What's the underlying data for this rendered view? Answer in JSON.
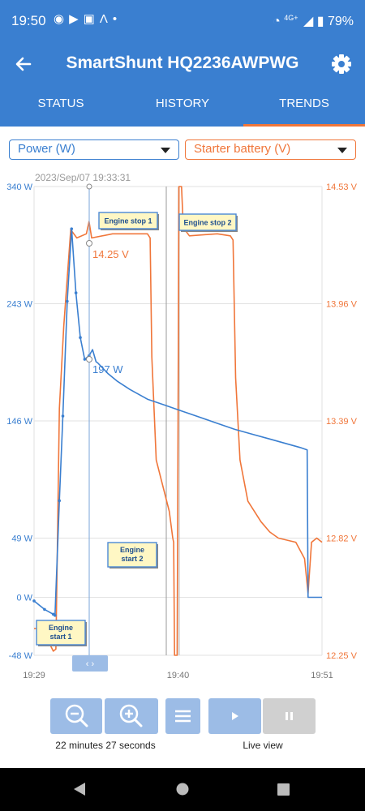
{
  "status_bar": {
    "time": "19:50",
    "network": "4G+",
    "battery": "79%",
    "icons": [
      "messenger-icon",
      "youtube-icon",
      "translate-icon",
      "lambda-icon",
      "dot-icon",
      "wifi-icon",
      "signal-icon",
      "battery-icon"
    ]
  },
  "app_bar": {
    "title": "SmartShunt HQ2236AWPWG"
  },
  "tabs": [
    {
      "label": "STATUS",
      "active": false
    },
    {
      "label": "HISTORY",
      "active": false
    },
    {
      "label": "TRENDS",
      "active": true
    }
  ],
  "selectors": {
    "left": "Power (W)",
    "right": "Starter battery (V)"
  },
  "colors": {
    "primary": "#3a7fd0",
    "accent": "#f0763a",
    "power_series": "#3a7fd0",
    "voltage_series": "#f0763a"
  },
  "chart_data": {
    "type": "line",
    "cursor_timestamp": "2023/Sep/07 19:33:31",
    "x_ticks": [
      "19:29",
      "19:40",
      "19:51"
    ],
    "y_left": {
      "ticks": [
        "340 W",
        "243 W",
        "146 W",
        "49 W",
        "0 W",
        "-48 W"
      ],
      "range": [
        -48,
        340
      ],
      "unit": "W"
    },
    "y_right": {
      "ticks": [
        "14.53 V",
        "13.96 V",
        "13.39 V",
        "12.82 V",
        "12.25 V"
      ],
      "range": [
        12.25,
        14.53
      ],
      "unit": "V"
    },
    "cursor_values": {
      "power": "197 W",
      "voltage": "14.25 V"
    },
    "annotations": [
      {
        "text": "Engine stop 1",
        "x": "19:33"
      },
      {
        "text": "Engine stop 2",
        "x": "19:40"
      },
      {
        "text": "Engine\nstart 2",
        "x": "19:39"
      },
      {
        "text": "Engine\nstart 1",
        "x": "19:31"
      }
    ],
    "series": [
      {
        "name": "Power (W)",
        "axis": "left",
        "color": "#3a7fd0",
        "points": [
          [
            0,
            -3
          ],
          [
            1.2,
            -10
          ],
          [
            2.2,
            -14
          ],
          [
            2.4,
            -15
          ],
          [
            2.9,
            80
          ],
          [
            3.3,
            150
          ],
          [
            3.8,
            245
          ],
          [
            4.3,
            305
          ],
          [
            4.8,
            252
          ],
          [
            5.3,
            215
          ],
          [
            5.8,
            197
          ],
          [
            6.3,
            200
          ],
          [
            6.7,
            205
          ],
          [
            7.1,
            195
          ],
          [
            7.3,
            194
          ],
          [
            8.5,
            185
          ],
          [
            9.5,
            179
          ],
          [
            11,
            172
          ],
          [
            13,
            164
          ],
          [
            15,
            159
          ],
          [
            17,
            154
          ],
          [
            19,
            149
          ],
          [
            21,
            144
          ],
          [
            23,
            139
          ],
          [
            25,
            135
          ],
          [
            27,
            131
          ],
          [
            29,
            127
          ],
          [
            30.5,
            124
          ],
          [
            31.3,
            122
          ],
          [
            31.4,
            0
          ],
          [
            33,
            0
          ]
        ]
      },
      {
        "name": "Starter battery (V)",
        "axis": "right",
        "color": "#f0763a",
        "points": [
          [
            0,
            12.38
          ],
          [
            1,
            12.38
          ],
          [
            1.5,
            12.33
          ],
          [
            2.2,
            12.27
          ],
          [
            2.5,
            12.28
          ],
          [
            2.9,
            13.45
          ],
          [
            3.4,
            13.85
          ],
          [
            4.2,
            14.32
          ],
          [
            4.9,
            14.28
          ],
          [
            6,
            14.3
          ],
          [
            6.3,
            14.36
          ],
          [
            6.6,
            14.28
          ],
          [
            9,
            14.3
          ],
          [
            13,
            14.3
          ],
          [
            13.3,
            14.28
          ],
          [
            13.5,
            13.7
          ],
          [
            14,
            13.2
          ],
          [
            15.5,
            12.95
          ],
          [
            15.9,
            12.82
          ],
          [
            16,
            12.8
          ],
          [
            16.1,
            12.25
          ],
          [
            16.4,
            12.25
          ],
          [
            16.6,
            14.53
          ],
          [
            16.9,
            14.53
          ],
          [
            17.1,
            14.33
          ],
          [
            17.8,
            14.29
          ],
          [
            21,
            14.3
          ],
          [
            22.5,
            14.29
          ],
          [
            22.8,
            14.27
          ],
          [
            23.1,
            13.6
          ],
          [
            23.6,
            13.2
          ],
          [
            24.5,
            13.0
          ],
          [
            26,
            12.9
          ],
          [
            27,
            12.85
          ],
          [
            28,
            12.82
          ],
          [
            30,
            12.8
          ],
          [
            31,
            12.72
          ],
          [
            31.4,
            12.55
          ],
          [
            31.8,
            12.8
          ],
          [
            32.4,
            12.82
          ],
          [
            33,
            12.8
          ]
        ]
      }
    ]
  },
  "controls": {
    "duration": "22 minutes 27 seconds",
    "live_view": "Live view",
    "scroll_handle": "‹ ›"
  }
}
